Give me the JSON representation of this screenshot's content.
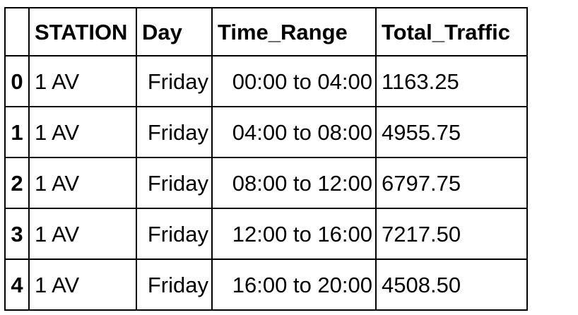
{
  "table": {
    "index_header": "",
    "columns": [
      "STATION",
      "Day",
      "Time_Range",
      "Total_Traffic"
    ],
    "rows": [
      {
        "index": "0",
        "STATION": "1 AV",
        "Day": "Friday",
        "Time_Range": "00:00 to 04:00",
        "Total_Traffic": "1163.25"
      },
      {
        "index": "1",
        "STATION": "1 AV",
        "Day": "Friday",
        "Time_Range": "04:00 to 08:00",
        "Total_Traffic": "4955.75"
      },
      {
        "index": "2",
        "STATION": "1 AV",
        "Day": "Friday",
        "Time_Range": "08:00 to 12:00",
        "Total_Traffic": "6797.75"
      },
      {
        "index": "3",
        "STATION": "1 AV",
        "Day": "Friday",
        "Time_Range": "12:00 to 16:00",
        "Total_Traffic": "7217.50"
      },
      {
        "index": "4",
        "STATION": "1 AV",
        "Day": "Friday",
        "Time_Range": "16:00 to 20:00",
        "Total_Traffic": "4508.50"
      }
    ]
  }
}
